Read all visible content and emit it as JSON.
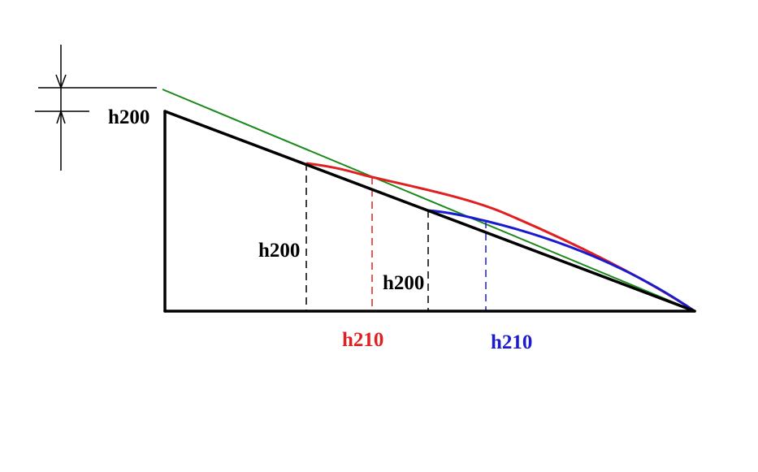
{
  "labels": [
    {
      "text": "h200"
    },
    {
      "text": "h200"
    },
    {
      "text": "h200"
    },
    {
      "text": "h210"
    },
    {
      "text": "h210"
    }
  ]
}
